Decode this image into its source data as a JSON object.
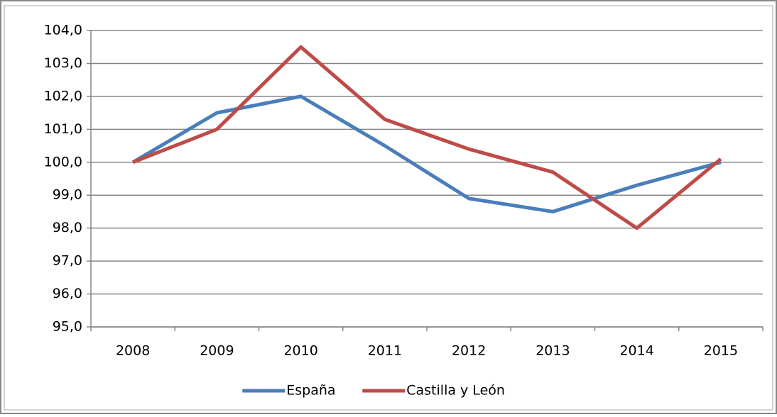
{
  "chart_data": {
    "type": "line",
    "categories": [
      "2008",
      "2009",
      "2010",
      "2011",
      "2012",
      "2013",
      "2014",
      "2015"
    ],
    "series": [
      {
        "name": "España",
        "color": "#4a7ebb",
        "values": [
          100.0,
          101.5,
          102.0,
          100.5,
          98.9,
          98.5,
          99.3,
          100.0
        ]
      },
      {
        "name": "Castilla y León",
        "color": "#be4b48",
        "values": [
          100.0,
          101.0,
          103.5,
          101.3,
          100.4,
          99.7,
          98.0,
          100.1
        ]
      }
    ],
    "ylim": [
      95,
      104
    ],
    "yticks": [
      {
        "value": 95,
        "label": "95,0"
      },
      {
        "value": 96,
        "label": "96,0"
      },
      {
        "value": 97,
        "label": "97,0"
      },
      {
        "value": 98,
        "label": "98,0"
      },
      {
        "value": 99,
        "label": "99,0"
      },
      {
        "value": 100,
        "label": "100,0"
      },
      {
        "value": 101,
        "label": "101,0"
      },
      {
        "value": 102,
        "label": "102,0"
      },
      {
        "value": 103,
        "label": "103,0"
      },
      {
        "value": 104,
        "label": "104,0"
      }
    ],
    "grid": true,
    "legend": "bottom"
  }
}
